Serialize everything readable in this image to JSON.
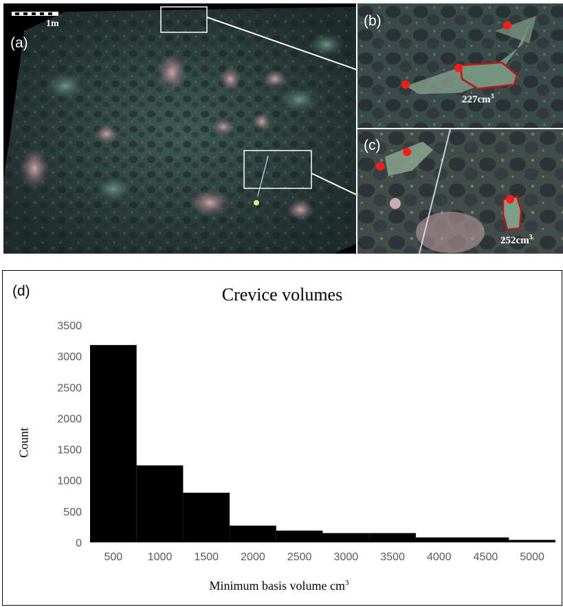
{
  "panels": {
    "a": {
      "letter": "(a)",
      "scale_bar_label": "1m"
    },
    "b": {
      "letter": "(b)",
      "volume_label": "227cm",
      "volume_unit_sup": "3"
    },
    "c": {
      "letter": "(c)",
      "volume_label": "252cm",
      "volume_unit_sup": "3"
    },
    "d": {
      "letter": "(d)"
    }
  },
  "colors": {
    "bars": "#000000",
    "marker": "#ff1a1a",
    "outline": "#c0141a",
    "tick_text": "#595959"
  },
  "chart_data": {
    "type": "bar",
    "title": "Crevice volumes",
    "xlabel": "Minimum basis volume cm",
    "xlabel_sup": "3",
    "ylabel": "Count",
    "categories": [
      "500",
      "1000",
      "1500",
      "2000",
      "2500",
      "3000",
      "3500",
      "4000",
      "4500",
      "5000"
    ],
    "values": [
      3180,
      1240,
      800,
      270,
      190,
      150,
      150,
      80,
      80,
      40
    ],
    "yticks": [
      "0",
      "500",
      "1000",
      "1500",
      "2000",
      "2500",
      "3000",
      "3500"
    ],
    "ylim": [
      0,
      3500
    ],
    "grid": false,
    "legend": "none"
  }
}
